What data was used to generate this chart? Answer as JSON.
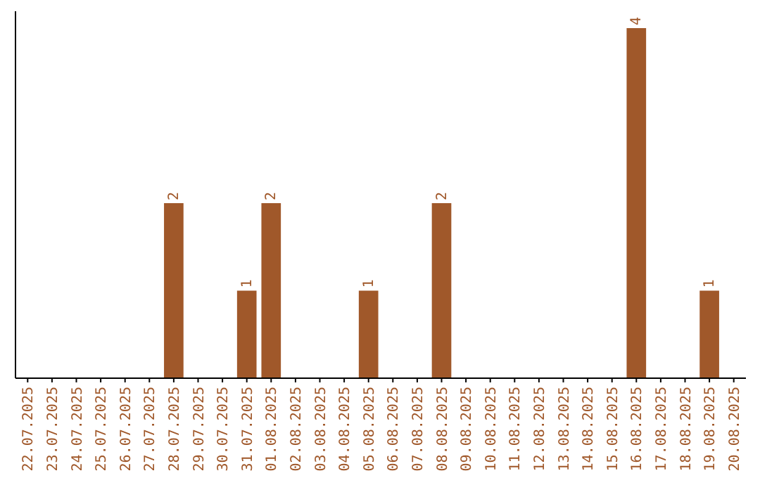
{
  "chart_data": {
    "type": "bar",
    "categories": [
      "22.07.2025",
      "23.07.2025",
      "24.07.2025",
      "25.07.2025",
      "26.07.2025",
      "27.07.2025",
      "28.07.2025",
      "29.07.2025",
      "30.07.2025",
      "31.07.2025",
      "01.08.2025",
      "02.08.2025",
      "03.08.2025",
      "04.08.2025",
      "05.08.2025",
      "06.08.2025",
      "07.08.2025",
      "08.08.2025",
      "09.08.2025",
      "10.08.2025",
      "11.08.2025",
      "12.08.2025",
      "13.08.2025",
      "14.08.2025",
      "15.08.2025",
      "16.08.2025",
      "17.08.2025",
      "18.08.2025",
      "19.08.2025",
      "20.08.2025"
    ],
    "values": [
      0,
      0,
      0,
      0,
      0,
      0,
      2,
      0,
      0,
      1,
      2,
      0,
      0,
      0,
      1,
      0,
      0,
      2,
      0,
      0,
      0,
      0,
      0,
      0,
      0,
      4,
      0,
      0,
      1,
      0
    ],
    "value_labels": [
      null,
      null,
      null,
      null,
      null,
      null,
      "2",
      null,
      null,
      "1",
      "2",
      null,
      null,
      null,
      "1",
      null,
      null,
      "2",
      null,
      null,
      null,
      null,
      null,
      null,
      null,
      "4",
      null,
      null,
      "1",
      null
    ],
    "color": "#a0582a"
  }
}
